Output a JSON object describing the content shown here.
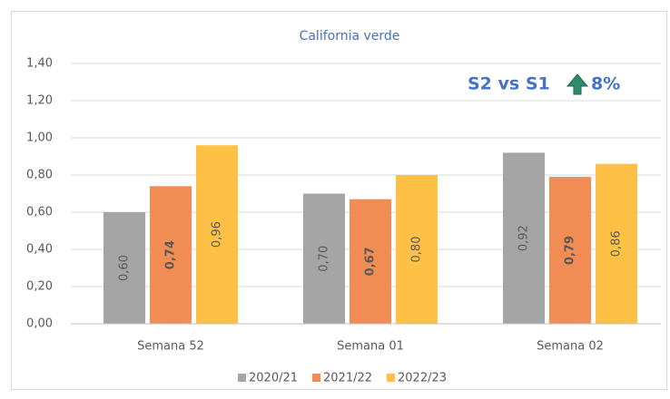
{
  "chart_data": {
    "type": "bar",
    "title": "California verde",
    "annotations": [
      "S2 vs S1",
      "8%"
    ],
    "categories": [
      "Semana 52",
      "Semana 01",
      "Semana 02"
    ],
    "series": [
      {
        "name": "2020/21",
        "color": "#a5a5a5",
        "values": [
          0.6,
          0.7,
          0.92
        ],
        "value_labels": [
          "0,60",
          "0,70",
          "0,92"
        ]
      },
      {
        "name": "2021/22",
        "color": "#f08c54",
        "values": [
          0.74,
          0.67,
          0.79
        ],
        "value_labels": [
          "0,74",
          "0,67",
          "0,79"
        ]
      },
      {
        "name": "2022/23",
        "color": "#ffc145",
        "values": [
          0.96,
          0.8,
          0.86
        ],
        "value_labels": [
          "0,96",
          "0,80",
          "0,86"
        ]
      }
    ],
    "ylim": [
      0,
      1.4
    ],
    "yticks": [
      {
        "value": 0,
        "label": "0,00"
      },
      {
        "value": 0.2,
        "label": "0,20"
      },
      {
        "value": 0.4,
        "label": "0,40"
      },
      {
        "value": 0.6,
        "label": "0,60"
      },
      {
        "value": 0.8,
        "label": "0,80"
      },
      {
        "value": 1.0,
        "label": "1,00"
      },
      {
        "value": 1.2,
        "label": "1,20"
      },
      {
        "value": 1.4,
        "label": "1,40"
      }
    ],
    "grid": true,
    "legend": "bottom"
  }
}
